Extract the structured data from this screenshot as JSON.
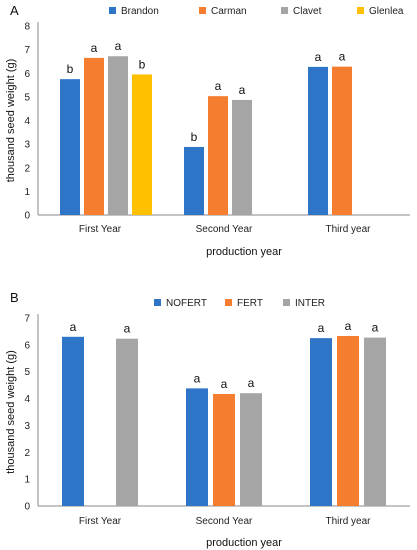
{
  "chart_data": [
    {
      "panel": "A",
      "type": "bar",
      "xlabel": "production year",
      "ylabel": "thousand seed weight (g)",
      "ylim": [
        0,
        8
      ],
      "yticks": [
        0,
        1,
        2,
        3,
        4,
        5,
        6,
        7,
        8
      ],
      "categories": [
        "First Year",
        "Second Year",
        "Third year"
      ],
      "legend_position": "top",
      "series": [
        {
          "name": "Brandon",
          "color": "#2E75C8",
          "values": [
            5.75,
            2.88,
            6.27
          ],
          "labels": [
            "b",
            "b",
            "a"
          ]
        },
        {
          "name": "Carman",
          "color": "#F47D30",
          "values": [
            6.65,
            5.03,
            6.28
          ],
          "labels": [
            "a",
            "a",
            "a"
          ]
        },
        {
          "name": "Clavet",
          "color": "#A5A5A5",
          "values": [
            6.72,
            4.87,
            null
          ],
          "labels": [
            "a",
            "a",
            ""
          ]
        },
        {
          "name": "Glenlea",
          "color": "#FFC000",
          "values": [
            5.95,
            null,
            null
          ],
          "labels": [
            "b",
            "",
            ""
          ]
        }
      ]
    },
    {
      "panel": "B",
      "type": "bar",
      "xlabel": "production year",
      "ylabel": "thousand seed weight (g)",
      "ylim": [
        0,
        7
      ],
      "yticks": [
        0,
        1,
        2,
        3,
        4,
        5,
        6,
        7
      ],
      "categories": [
        "First Year",
        "Second Year",
        "Third year"
      ],
      "legend_position": "top",
      "series": [
        {
          "name": "NOFERT",
          "color": "#2E75C8",
          "values": [
            6.3,
            4.38,
            6.25
          ],
          "labels": [
            "a",
            "a",
            "a"
          ]
        },
        {
          "name": "FERT",
          "color": "#F47D30",
          "values": [
            null,
            4.17,
            6.33
          ],
          "labels": [
            "",
            "a",
            "a"
          ]
        },
        {
          "name": "INTER",
          "color": "#A5A5A5",
          "values": [
            6.23,
            4.2,
            6.27
          ],
          "labels": [
            "a",
            "a",
            "a"
          ]
        }
      ]
    }
  ]
}
